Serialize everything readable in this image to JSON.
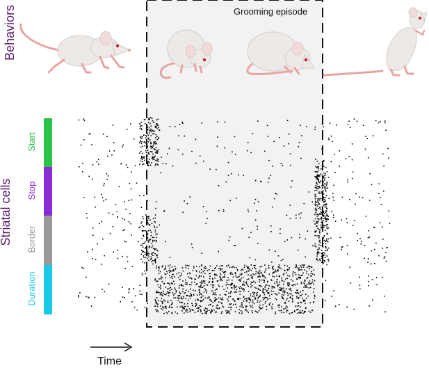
{
  "labels": {
    "behaviors": "Behaviors",
    "striatal_cells": "Striatal cells",
    "episode": "Grooming episode",
    "time": "Time"
  },
  "cell_categories": [
    {
      "name": "Start",
      "color": "#2bc24a"
    },
    {
      "name": "Stop",
      "color": "#8a2bd6"
    },
    {
      "name": "Border",
      "color": "#999999"
    },
    {
      "name": "Duration",
      "color": "#19c9e8"
    }
  ],
  "colors": {
    "axis_label": "#5b1a6b",
    "episode_fill": "#f2f2f2",
    "episode_border": "#111111",
    "mouse_body": "#ede9e6",
    "mouse_shade": "#d3cdc8",
    "mouse_pink": "#e8a4a0",
    "mouse_eye": "#c8202a",
    "spike": "#000000"
  },
  "illustrations": [
    {
      "icon": "walking-mouse-icon"
    },
    {
      "icon": "grooming-mouse-small-icon"
    },
    {
      "icon": "grooming-mouse-large-icon"
    },
    {
      "icon": "rearing-mouse-icon"
    }
  ]
}
